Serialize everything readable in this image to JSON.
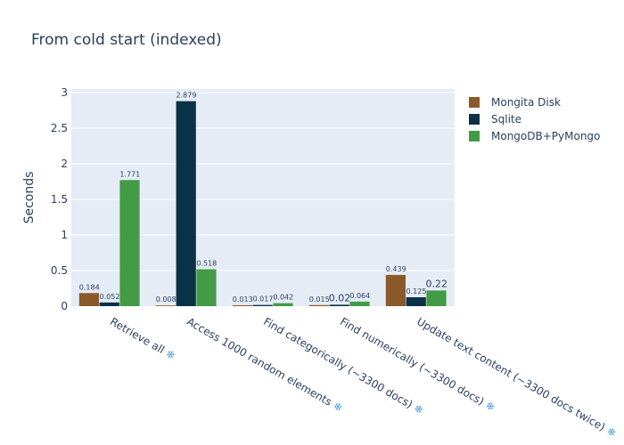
{
  "chart_data": {
    "type": "bar",
    "title": "From cold start (indexed)",
    "xlabel": "",
    "ylabel": "Seconds",
    "ylim": [
      0,
      3.05
    ],
    "yticks": [
      0,
      0.5,
      1,
      1.5,
      2,
      2.5,
      3
    ],
    "ytick_labels": [
      "0",
      "0.5",
      "1",
      "1.5",
      "2",
      "2.5",
      "3"
    ],
    "grid": true,
    "legend_position": "top-right",
    "category_icon": "snowflake-icon",
    "categories": [
      "Retrieve all",
      "Access 1000 random elements",
      "Find categorically (~3300 docs)",
      "Find numerically (~3300 docs)",
      "Update text content (~3300 docs twice)"
    ],
    "series": [
      {
        "name": "Mongita Disk",
        "color": "#8b5a2b",
        "values": [
          0.184,
          0.008,
          0.013,
          0.015,
          0.439
        ],
        "labels": [
          "0.184",
          "0.008",
          "0.013",
          "0.015",
          "0.439"
        ]
      },
      {
        "name": "Sqlite",
        "color": "#0b3147",
        "values": [
          0.052,
          2.879,
          0.017,
          0.02,
          0.125
        ],
        "labels": [
          "0.052",
          "2.879",
          "0.017",
          "0.02",
          "0.125"
        ]
      },
      {
        "name": "MongoDB+PyMongo",
        "color": "#439b45",
        "values": [
          1.771,
          0.518,
          0.042,
          0.064,
          0.22
        ],
        "labels": [
          "1.771",
          "0.518",
          "0.042",
          "0.064",
          "0.22"
        ]
      }
    ]
  }
}
